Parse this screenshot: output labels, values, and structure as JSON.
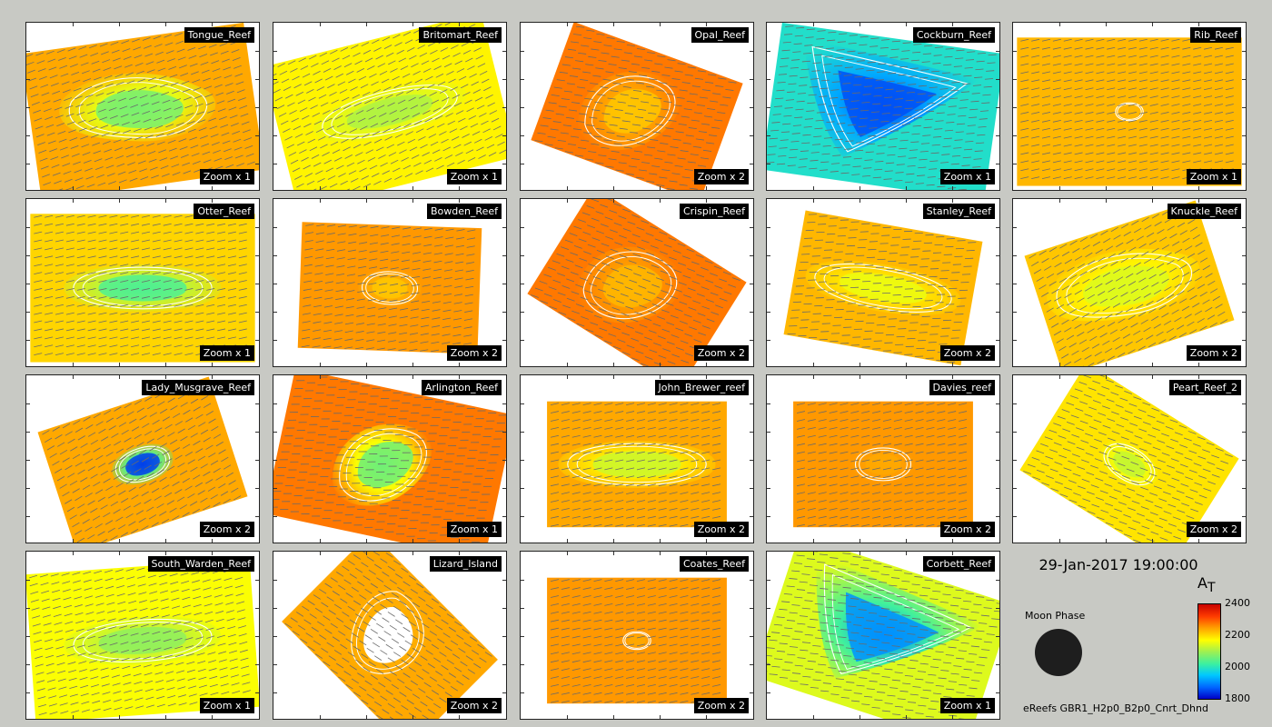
{
  "chart_data": {
    "type": "heatmap",
    "variable_label": "A",
    "variable_subscript": "T",
    "colorbar": {
      "min": 1800,
      "max": 2400,
      "ticks": [
        "2400",
        "2200",
        "2000",
        "1800"
      ],
      "colormap": [
        "#0000c8",
        "#0064ff",
        "#00c8ff",
        "#3cf0a0",
        "#a0f050",
        "#ffff00",
        "#ffa000",
        "#ff3c00",
        "#c80000"
      ]
    },
    "timestamp": "29-Jan-2017 19:00:00",
    "moon_phase_label": "Moon Phase",
    "moon_phase": "new moon",
    "run_label": "eReefs GBR1_H2p0_B2p0_Cnrt_Dhnd",
    "panels": [
      {
        "name": "Tongue_Reef",
        "zoom": "Zoom x 1",
        "rotate": -8,
        "low": 0.45,
        "bg": 0.74,
        "shoal": "blob-long"
      },
      {
        "name": "Britomart_Reef",
        "zoom": "Zoom x 1",
        "rotate": -14,
        "low": 0.52,
        "bg": 0.64,
        "shoal": "oval"
      },
      {
        "name": "Opal_Reef",
        "zoom": "Zoom x 2",
        "rotate": 20,
        "low": 0.7,
        "bg": 0.8,
        "shoal": "crescent"
      },
      {
        "name": "Cockburn_Reef",
        "zoom": "Zoom x 1",
        "rotate": 8,
        "low": 0.1,
        "bg": 0.32,
        "shoal": "triangle"
      },
      {
        "name": "Rib_Reef",
        "zoom": "Zoom x 1",
        "rotate": 0,
        "low": 0.72,
        "bg": 0.72,
        "shoal": "dot"
      },
      {
        "name": "Otter_Reef",
        "zoom": "Zoom x 1",
        "rotate": 0,
        "low": 0.4,
        "bg": 0.68,
        "shoal": "oval"
      },
      {
        "name": "Bowden_Reef",
        "zoom": "Zoom x 2",
        "rotate": 2,
        "low": 0.7,
        "bg": 0.76,
        "shoal": "small-oval"
      },
      {
        "name": "Crispin_Reef",
        "zoom": "Zoom x 2",
        "rotate": 32,
        "low": 0.72,
        "bg": 0.8,
        "shoal": "crescent"
      },
      {
        "name": "Stanley_Reef",
        "zoom": "Zoom x 2",
        "rotate": 10,
        "low": 0.6,
        "bg": 0.72,
        "shoal": "oval"
      },
      {
        "name": "Knuckle_Reef",
        "zoom": "Zoom x 2",
        "rotate": -18,
        "low": 0.58,
        "bg": 0.7,
        "shoal": "blob-long"
      },
      {
        "name": "Lady_Musgrave_Reef",
        "zoom": "Zoom x 2",
        "rotate": -18,
        "low": 0.08,
        "bg": 0.74,
        "shoal": "small-oval"
      },
      {
        "name": "Arlington_Reef",
        "zoom": "Zoom x 1",
        "rotate": 12,
        "low": 0.44,
        "bg": 0.8,
        "shoal": "crescent"
      },
      {
        "name": "John_Brewer_reef",
        "zoom": "Zoom x 2",
        "rotate": 0,
        "low": 0.56,
        "bg": 0.74,
        "shoal": "oval"
      },
      {
        "name": "Davies_reef",
        "zoom": "Zoom x 2",
        "rotate": 0,
        "low": 0.74,
        "bg": 0.76,
        "shoal": "small-oval"
      },
      {
        "name": "Peart_Reef_2",
        "zoom": "Zoom x 2",
        "rotate": 32,
        "low": 0.55,
        "bg": 0.66,
        "shoal": "small-oval"
      },
      {
        "name": "South_Warden_Reef",
        "zoom": "Zoom x 1",
        "rotate": -4,
        "low": 0.48,
        "bg": 0.62,
        "shoal": "oval"
      },
      {
        "name": "Lizard_Island",
        "zoom": "Zoom x 2",
        "rotate": 45,
        "low": 0.72,
        "bg": 0.74,
        "shoal": "island"
      },
      {
        "name": "Coates_Reef",
        "zoom": "Zoom x 2",
        "rotate": 0,
        "low": 0.74,
        "bg": 0.76,
        "shoal": "dot"
      },
      {
        "name": "Corbett_Reef",
        "zoom": "Zoom x 1",
        "rotate": 18,
        "low": 0.18,
        "bg": 0.58,
        "shoal": "triangle"
      }
    ]
  }
}
